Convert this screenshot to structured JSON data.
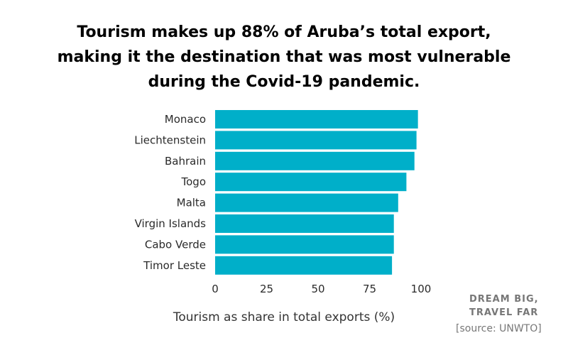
{
  "title_lines": [
    "Tourism makes up 88% of Aruba’s total export,",
    "making it the destination that was most vulnerable",
    "during the Covid-19 pandemic."
  ],
  "chart_data": {
    "type": "bar",
    "orientation": "horizontal",
    "categories": [
      "Monaco",
      "Liechtenstein",
      "Bahrain",
      "Togo",
      "Malta",
      "Virgin Islands",
      "Cabo Verde",
      "Timor Leste"
    ],
    "values": [
      98.5,
      97.8,
      96.8,
      92.9,
      88.9,
      86.8,
      86.8,
      85.9
    ],
    "xlabel": "Tourism as share in total exports (%)",
    "xlim": [
      0,
      100
    ],
    "xticks": [
      "0",
      "25",
      "50",
      "75",
      "100"
    ],
    "bar_color": "#00afc9",
    "grid": false
  },
  "branding": {
    "line1": "DREAM BIG,",
    "line2": "TRAVEL FAR"
  },
  "source": "[source: UNWTO]"
}
